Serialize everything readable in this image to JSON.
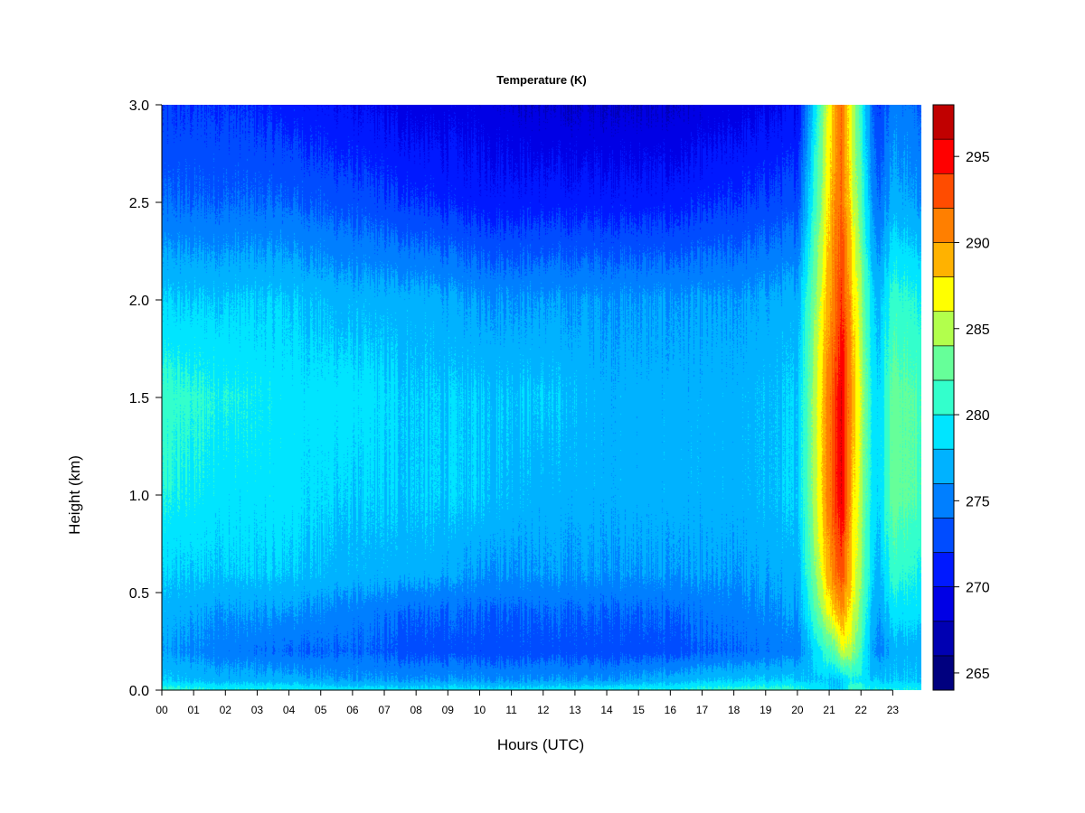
{
  "chart_data": {
    "type": "heatmap",
    "title": "Temperature (K)",
    "xlabel": "Hours (UTC)",
    "ylabel": "Height (km)",
    "xlim": [
      0,
      23.9
    ],
    "ylim": [
      0,
      3.0
    ],
    "x_ticks": [
      {
        "value": 0,
        "label": "00"
      },
      {
        "value": 1,
        "label": "01"
      },
      {
        "value": 2,
        "label": "02"
      },
      {
        "value": 3,
        "label": "03"
      },
      {
        "value": 4,
        "label": "04"
      },
      {
        "value": 5,
        "label": "05"
      },
      {
        "value": 6,
        "label": "06"
      },
      {
        "value": 7,
        "label": "07"
      },
      {
        "value": 8,
        "label": "08"
      },
      {
        "value": 9,
        "label": "09"
      },
      {
        "value": 10,
        "label": "10"
      },
      {
        "value": 11,
        "label": "11"
      },
      {
        "value": 12,
        "label": "12"
      },
      {
        "value": 13,
        "label": "13"
      },
      {
        "value": 14,
        "label": "14"
      },
      {
        "value": 15,
        "label": "15"
      },
      {
        "value": 16,
        "label": "16"
      },
      {
        "value": 17,
        "label": "17"
      },
      {
        "value": 18,
        "label": "18"
      },
      {
        "value": 19,
        "label": "19"
      },
      {
        "value": 20,
        "label": "20"
      },
      {
        "value": 21,
        "label": "21"
      },
      {
        "value": 22,
        "label": "22"
      },
      {
        "value": 23,
        "label": "23"
      }
    ],
    "y_ticks": [
      {
        "value": 0.0,
        "label": "0.0"
      },
      {
        "value": 0.5,
        "label": "0.5"
      },
      {
        "value": 1.0,
        "label": "1.0"
      },
      {
        "value": 1.5,
        "label": "1.5"
      },
      {
        "value": 2.0,
        "label": "2.0"
      },
      {
        "value": 2.5,
        "label": "2.5"
      },
      {
        "value": 3.0,
        "label": "3.0"
      }
    ],
    "colorbar": {
      "range": [
        264,
        298
      ],
      "levels": [
        264,
        266,
        268,
        270,
        272,
        274,
        276,
        278,
        280,
        282,
        284,
        286,
        288,
        290,
        292,
        294,
        296,
        298
      ],
      "colors": [
        "#00007F",
        "#0000B2",
        "#0000E5",
        "#0019FF",
        "#004CFF",
        "#007FFF",
        "#00B2FF",
        "#00E5FF",
        "#33FFCC",
        "#66FF99",
        "#B2FF4C",
        "#FFFF00",
        "#FFB200",
        "#FF7F00",
        "#FF4C00",
        "#FF0000",
        "#C00000",
        "#7F0000"
      ],
      "ticks": [
        {
          "value": 265,
          "label": "265"
        },
        {
          "value": 270,
          "label": "270"
        },
        {
          "value": 275,
          "label": "275"
        },
        {
          "value": 280,
          "label": "280"
        },
        {
          "value": 285,
          "label": "285"
        },
        {
          "value": 290,
          "label": "290"
        },
        {
          "value": 295,
          "label": "295"
        }
      ]
    },
    "grid": false,
    "legend": "colorbar-right",
    "grid_hours": [
      0,
      2,
      4,
      6,
      8,
      10,
      12,
      14,
      16,
      18,
      20,
      21.2,
      21.4,
      21.7,
      22.5,
      23,
      23.9
    ],
    "grid_heights_km": [
      0.0,
      0.05,
      0.2,
      0.4,
      0.6,
      1.0,
      1.5,
      2.0,
      2.5,
      3.0
    ],
    "values_K": [
      [
        281,
        280,
        280,
        279,
        279,
        279,
        279,
        280,
        280,
        281,
        281,
        278,
        278,
        282,
        280,
        280,
        280
      ],
      [
        278,
        277,
        277,
        276,
        276,
        276,
        276,
        276,
        277,
        278,
        278,
        278,
        278,
        280,
        278,
        278,
        278
      ],
      [
        276,
        275,
        274,
        274,
        273,
        273,
        273,
        273,
        273,
        274,
        275,
        283,
        286,
        285,
        275,
        277,
        277
      ],
      [
        277,
        276,
        276,
        275,
        274,
        274,
        274,
        274,
        274,
        275,
        276,
        289,
        290,
        287,
        276,
        279,
        279
      ],
      [
        278,
        278,
        278,
        277,
        277,
        276,
        276,
        276,
        276,
        276,
        277,
        292,
        293,
        288,
        277,
        281,
        280
      ],
      [
        280,
        279,
        279,
        278,
        278,
        278,
        277,
        277,
        277,
        277,
        278,
        294,
        296,
        289,
        278,
        283,
        282
      ],
      [
        281,
        280,
        279,
        279,
        278,
        278,
        278,
        277,
        277,
        277,
        278,
        294,
        296,
        290,
        278,
        283,
        282
      ],
      [
        278,
        278,
        278,
        277,
        277,
        276,
        276,
        276,
        276,
        276,
        277,
        292,
        294,
        289,
        277,
        281,
        280
      ],
      [
        274,
        274,
        274,
        273,
        272,
        271,
        271,
        271,
        271,
        272,
        273,
        291,
        292,
        287,
        274,
        277,
        276
      ],
      [
        272,
        272,
        271,
        270,
        269,
        269,
        268,
        268,
        268,
        269,
        270,
        290,
        292,
        286,
        272,
        275,
        274
      ]
    ]
  }
}
